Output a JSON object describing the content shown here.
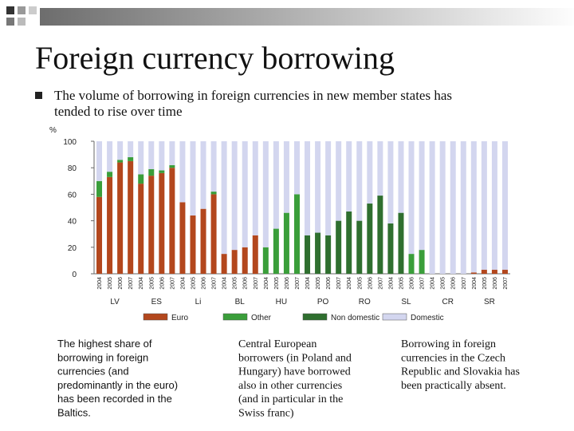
{
  "slide": {
    "title": "Foreign currency borrowing",
    "bullet": [
      "The volume of borrowing in foreign currencies in new member states has",
      "tended to rise over time"
    ],
    "notes": [
      [
        "The highest share of",
        "borrowing in foreign",
        "currencies (and",
        "predominantly in the euro)",
        "has been recorded in the",
        "Baltics."
      ],
      [
        "Central European",
        "borrowers (in Poland and",
        "Hungary) have borrowed",
        "also in other currencies",
        "(and in particular in the",
        "Swiss franc)"
      ],
      [
        "Borrowing in foreign",
        "currencies in the Czech",
        "Republic and Slovakia has",
        "been practically absent."
      ]
    ]
  },
  "chart_data": {
    "type": "stacked_bar",
    "y_label": "%",
    "categories": [
      "2004",
      "2005",
      "2006",
      "2007",
      "2004",
      "2005",
      "2006",
      "2007",
      "2004",
      "2005",
      "2006",
      "2007",
      "2004",
      "2005",
      "2006",
      "2007",
      "2004",
      "2005",
      "2006",
      "2007",
      "2004",
      "2005",
      "2006",
      "2007",
      "2004",
      "2005",
      "2006",
      "2007",
      "2004",
      "2005",
      "2006",
      "2007",
      "2004",
      "2005",
      "2006",
      "2007",
      "2004",
      "2005",
      "2006",
      "2007"
    ],
    "groups": [
      "LV",
      "ES",
      "Li",
      "BL",
      "HU",
      "PO",
      "RO",
      "SL",
      "CR",
      "SR"
    ],
    "series": [
      {
        "name": "Euro",
        "color": "#b3471d",
        "values": [
          58,
          73,
          84,
          85,
          68,
          74,
          76,
          80,
          54,
          44,
          49,
          60,
          15,
          18,
          20,
          29,
          0,
          0,
          0,
          0,
          0,
          0,
          0,
          0,
          0,
          0,
          0,
          0,
          0,
          0,
          0,
          0,
          0,
          0,
          0,
          0,
          1,
          3,
          3,
          3
        ]
      },
      {
        "name": "Other",
        "color": "#3a9e3a",
        "values": [
          12,
          4,
          2,
          3,
          7,
          5,
          2,
          2,
          0,
          0,
          0,
          2,
          0,
          0,
          0,
          0,
          20,
          34,
          46,
          60,
          0,
          0,
          0,
          0,
          0,
          0,
          0,
          0,
          0,
          0,
          15,
          18,
          0,
          0,
          0,
          0,
          0,
          0,
          0,
          0
        ]
      },
      {
        "name": "Non domestic",
        "color": "#2f6f2f",
        "values": [
          0,
          0,
          0,
          0,
          0,
          0,
          0,
          0,
          0,
          0,
          0,
          0,
          0,
          0,
          0,
          0,
          0,
          0,
          0,
          0,
          29,
          31,
          29,
          40,
          47,
          40,
          53,
          59,
          38,
          46,
          0,
          0,
          0,
          0,
          0,
          0,
          0,
          0,
          0,
          0
        ]
      },
      {
        "name": "Domestic",
        "color": "#d3d6ef",
        "values": [
          30,
          23,
          14,
          12,
          25,
          21,
          22,
          18,
          46,
          56,
          51,
          38,
          85,
          82,
          80,
          71,
          80,
          66,
          54,
          40,
          71,
          69,
          71,
          60,
          53,
          60,
          47,
          41,
          62,
          54,
          85,
          82,
          100,
          100,
          100,
          100,
          99,
          97,
          97,
          97
        ]
      }
    ],
    "ylim": [
      0,
      100
    ],
    "yticks": [
      0,
      20,
      40,
      60,
      80,
      100
    ]
  }
}
